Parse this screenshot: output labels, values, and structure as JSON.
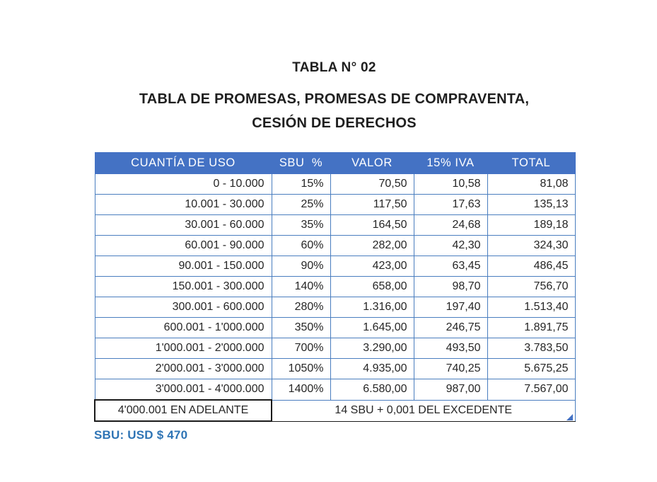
{
  "page": {
    "title": "TABLA N° 02",
    "subtitle_line1": "TABLA DE PROMESAS, PROMESAS DE COMPRAVENTA,",
    "subtitle_line2": "CESIÓN DE DERECHOS",
    "footnote": "SBU: USD $ 470"
  },
  "table": {
    "headers": [
      "CUANTÍA DE USO",
      "SBU  %",
      "VALOR",
      "15% IVA",
      "TOTAL"
    ],
    "rows": [
      [
        "0 - 10.000",
        "15%",
        "70,50",
        "10,58",
        "81,08"
      ],
      [
        "10.001 - 30.000",
        "25%",
        "117,50",
        "17,63",
        "135,13"
      ],
      [
        "30.001 - 60.000",
        "35%",
        "164,50",
        "24,68",
        "189,18"
      ],
      [
        "60.001 - 90.000",
        "60%",
        "282,00",
        "42,30",
        "324,30"
      ],
      [
        "90.001 - 150.000",
        "90%",
        "423,00",
        "63,45",
        "486,45"
      ],
      [
        "150.001 - 300.000",
        "140%",
        "658,00",
        "98,70",
        "756,70"
      ],
      [
        "300.001 - 600.000",
        "280%",
        "1.316,00",
        "197,40",
        "1.513,40"
      ],
      [
        "600.001 - 1'000.000",
        "350%",
        "1.645,00",
        "246,75",
        "1.891,75"
      ],
      [
        "1'000.001 - 2'000.000",
        "700%",
        "3.290,00",
        "493,50",
        "3.783,50"
      ],
      [
        "2'000.001 - 3'000.000",
        "1050%",
        "4.935,00",
        "740,25",
        "5.675,25"
      ],
      [
        "3'000.001 - 4'000.000",
        "1400%",
        "6.580,00",
        "987,00",
        "7.567,00"
      ]
    ],
    "footer": {
      "range": "4'000.001 EN ADELANTE",
      "formula": "14 SBU + 0,001 DEL EXCEDENTE"
    }
  },
  "colors": {
    "header_bg": "#4472C4",
    "header_text": "#FFFFFF",
    "grid_border": "#4A7EBF",
    "footer_border": "#1A1A1A",
    "note_text": "#2E74B5",
    "corner_triangle": "#4472C4"
  }
}
